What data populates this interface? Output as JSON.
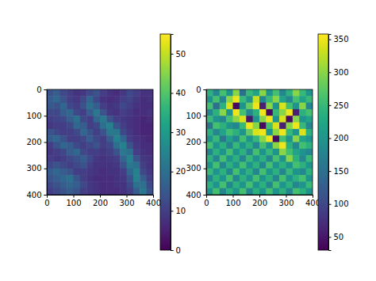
{
  "chart_data": [
    {
      "type": "heatmap",
      "x": [
        12.5,
        37.5,
        62.5,
        87.5,
        112.5,
        137.5,
        162.5,
        187.5,
        212.5,
        237.5,
        262.5,
        287.5,
        312.5,
        337.5,
        362.5,
        387.5
      ],
      "y": [
        12.5,
        37.5,
        62.5,
        87.5,
        112.5,
        137.5,
        162.5,
        187.5,
        212.5,
        237.5,
        262.5,
        287.5,
        312.5,
        337.5,
        362.5,
        387.5
      ],
      "xlim": [
        0,
        400
      ],
      "xticks": [
        0,
        100,
        200,
        300,
        400
      ],
      "ylim": [
        400,
        0
      ],
      "yticks": [
        0,
        100,
        200,
        300,
        400
      ],
      "cells": [
        [
          14,
          16,
          12,
          10,
          8,
          9,
          12,
          14,
          10,
          8,
          7,
          9,
          12,
          10,
          8,
          8
        ],
        [
          16,
          18,
          14,
          10,
          9,
          12,
          18,
          12,
          8,
          7,
          8,
          10,
          11,
          9,
          7,
          8
        ],
        [
          15,
          14,
          18,
          12,
          10,
          14,
          20,
          16,
          10,
          8,
          9,
          12,
          10,
          8,
          7,
          7
        ],
        [
          12,
          12,
          16,
          18,
          12,
          10,
          16,
          22,
          14,
          9,
          8,
          10,
          9,
          7,
          7,
          8
        ],
        [
          10,
          11,
          12,
          16,
          20,
          12,
          10,
          18,
          22,
          14,
          10,
          9,
          8,
          7,
          6,
          7
        ],
        [
          9,
          10,
          10,
          12,
          18,
          16,
          10,
          12,
          20,
          24,
          14,
          10,
          8,
          7,
          6,
          6
        ],
        [
          14,
          12,
          10,
          10,
          12,
          18,
          14,
          10,
          14,
          22,
          22,
          12,
          9,
          7,
          6,
          6
        ],
        [
          16,
          18,
          14,
          10,
          10,
          12,
          16,
          12,
          10,
          16,
          24,
          18,
          10,
          8,
          7,
          6
        ],
        [
          10,
          14,
          18,
          16,
          12,
          10,
          12,
          14,
          10,
          12,
          20,
          24,
          14,
          9,
          7,
          7
        ],
        [
          9,
          10,
          12,
          16,
          18,
          12,
          10,
          10,
          9,
          10,
          14,
          22,
          20,
          10,
          8,
          7
        ],
        [
          10,
          9,
          10,
          12,
          14,
          16,
          12,
          9,
          8,
          9,
          10,
          18,
          24,
          14,
          9,
          8
        ],
        [
          12,
          14,
          12,
          10,
          12,
          14,
          10,
          8,
          8,
          8,
          9,
          14,
          22,
          20,
          10,
          8
        ],
        [
          16,
          18,
          16,
          14,
          10,
          10,
          9,
          8,
          7,
          8,
          8,
          10,
          18,
          24,
          12,
          9
        ],
        [
          14,
          16,
          18,
          20,
          14,
          10,
          8,
          7,
          7,
          7,
          8,
          9,
          14,
          24,
          16,
          10
        ],
        [
          12,
          14,
          16,
          18,
          16,
          12,
          9,
          8,
          7,
          7,
          8,
          8,
          12,
          20,
          20,
          12
        ],
        [
          10,
          12,
          14,
          16,
          14,
          10,
          9,
          8,
          7,
          7,
          7,
          8,
          10,
          16,
          22,
          14
        ]
      ],
      "colorbar": {
        "range": [
          0,
          55
        ],
        "ticks": [
          0,
          10,
          20,
          30,
          40,
          50
        ]
      }
    },
    {
      "type": "heatmap",
      "x": [
        12.5,
        37.5,
        62.5,
        87.5,
        112.5,
        137.5,
        162.5,
        187.5,
        212.5,
        237.5,
        262.5,
        287.5,
        312.5,
        337.5,
        362.5,
        387.5
      ],
      "y": [
        12.5,
        37.5,
        62.5,
        87.5,
        112.5,
        137.5,
        162.5,
        187.5,
        212.5,
        237.5,
        262.5,
        287.5,
        312.5,
        337.5,
        362.5,
        387.5
      ],
      "xlim": [
        0,
        400
      ],
      "xticks": [
        0,
        100,
        200,
        300,
        400
      ],
      "ylim": [
        400,
        0
      ],
      "yticks": [
        0,
        100,
        200,
        300,
        400
      ],
      "cells": [
        [
          240,
          180,
          260,
          200,
          300,
          150,
          250,
          220,
          300,
          200,
          260,
          180,
          240,
          300,
          250,
          200
        ],
        [
          200,
          260,
          180,
          300,
          350,
          250,
          200,
          330,
          180,
          250,
          300,
          220,
          180,
          260,
          220,
          250
        ],
        [
          260,
          150,
          240,
          340,
          40,
          200,
          280,
          350,
          60,
          300,
          200,
          340,
          260,
          200,
          300,
          180
        ],
        [
          180,
          240,
          300,
          200,
          350,
          260,
          180,
          240,
          350,
          40,
          250,
          300,
          350,
          60,
          240,
          260
        ],
        [
          250,
          200,
          180,
          260,
          300,
          340,
          50,
          200,
          300,
          350,
          200,
          340,
          40,
          300,
          200,
          220
        ],
        [
          160,
          260,
          240,
          200,
          180,
          250,
          350,
          300,
          40,
          260,
          340,
          60,
          300,
          350,
          250,
          180
        ],
        [
          240,
          180,
          220,
          260,
          240,
          200,
          280,
          340,
          350,
          200,
          300,
          350,
          250,
          200,
          340,
          240
        ],
        [
          200,
          250,
          160,
          220,
          180,
          260,
          200,
          250,
          300,
          350,
          40,
          260,
          200,
          300,
          220,
          200
        ],
        [
          260,
          200,
          240,
          180,
          250,
          200,
          240,
          180,
          260,
          200,
          300,
          350,
          240,
          180,
          260,
          240
        ],
        [
          180,
          240,
          200,
          260,
          200,
          240,
          180,
          260,
          200,
          250,
          200,
          300,
          260,
          220,
          200,
          180
        ],
        [
          240,
          180,
          260,
          200,
          240,
          180,
          250,
          200,
          240,
          180,
          260,
          200,
          300,
          240,
          180,
          250
        ],
        [
          200,
          260,
          180,
          240,
          200,
          260,
          200,
          240,
          180,
          260,
          200,
          240,
          200,
          260,
          240,
          200
        ],
        [
          250,
          200,
          240,
          180,
          260,
          200,
          240,
          180,
          260,
          200,
          240,
          180,
          250,
          200,
          180,
          240
        ],
        [
          180,
          240,
          200,
          260,
          180,
          240,
          200,
          260,
          200,
          240,
          180,
          260,
          200,
          240,
          260,
          200
        ],
        [
          240,
          200,
          260,
          180,
          240,
          200,
          260,
          200,
          240,
          180,
          260,
          200,
          240,
          180,
          200,
          250
        ],
        [
          200,
          260,
          180,
          240,
          200,
          260,
          180,
          240,
          200,
          260,
          200,
          240,
          180,
          260,
          240,
          200
        ]
      ],
      "colorbar": {
        "range": [
          30,
          358
        ],
        "ticks": [
          50,
          100,
          150,
          200,
          250,
          300,
          350
        ]
      }
    }
  ]
}
